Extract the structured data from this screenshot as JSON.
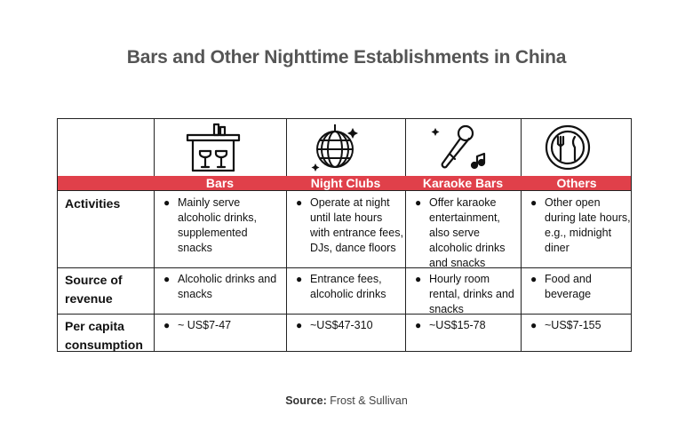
{
  "title": "Bars and Other Nighttime Establishments in China",
  "columns": [
    {
      "label": "Bars",
      "icon": "bar-counter-icon"
    },
    {
      "label": "Night Clubs",
      "icon": "disco-ball-icon"
    },
    {
      "label": "Karaoke Bars",
      "icon": "microphone-icon"
    },
    {
      "label": "Others",
      "icon": "plate-fork-knife-icon"
    }
  ],
  "rows": [
    {
      "label_line1": "Activities",
      "label_line2": "",
      "cells": [
        "Mainly serve alcoholic drinks, supplemented snacks",
        "Operate at night until late hours with entrance fees, DJs, dance floors",
        "Offer karaoke entertainment, also serve alcoholic drinks and snacks",
        "Other open during late hours, e.g., midnight diner"
      ]
    },
    {
      "label_line1": "Source of",
      "label_line2": "revenue",
      "cells": [
        "Alcoholic drinks and snacks",
        "Entrance fees, alcoholic drinks",
        "Hourly room rental, drinks and snacks",
        "Food and beverage"
      ]
    },
    {
      "label_line1": "Per capita",
      "label_line2": "consumption",
      "cells": [
        "~ US$7-47",
        "~US$47-310",
        "~US$15-78",
        "~US$7-155"
      ]
    }
  ],
  "source": {
    "label": "Source:",
    "text": "Frost & Sullivan"
  },
  "colors": {
    "header_band": "#e0404a",
    "title": "#555555"
  }
}
